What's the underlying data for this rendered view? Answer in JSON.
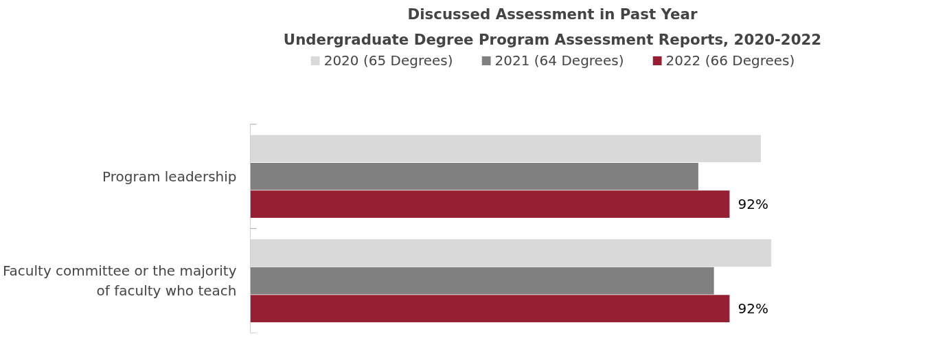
{
  "chart_data": {
    "type": "bar",
    "orientation": "horizontal",
    "title": "Discussed Assessment in Past Year",
    "subtitle": "Undergraduate Degree Program Assessment Reports, 2020-2022",
    "categories": [
      "Program leadership",
      "Faculty committee or the majority of faculty who teach"
    ],
    "series": [
      {
        "name": "2020 (65 Degrees)",
        "color": "#d9d9d9",
        "values": [
          98,
          100
        ]
      },
      {
        "name": "2021 (64 Degrees)",
        "color": "#808080",
        "values": [
          86,
          89
        ]
      },
      {
        "name": "2022 (66 Degrees)",
        "color": "#971f33",
        "values": [
          92,
          92
        ],
        "value_labels": [
          "92%",
          "92%"
        ]
      }
    ],
    "legend": "top",
    "grid": false
  }
}
